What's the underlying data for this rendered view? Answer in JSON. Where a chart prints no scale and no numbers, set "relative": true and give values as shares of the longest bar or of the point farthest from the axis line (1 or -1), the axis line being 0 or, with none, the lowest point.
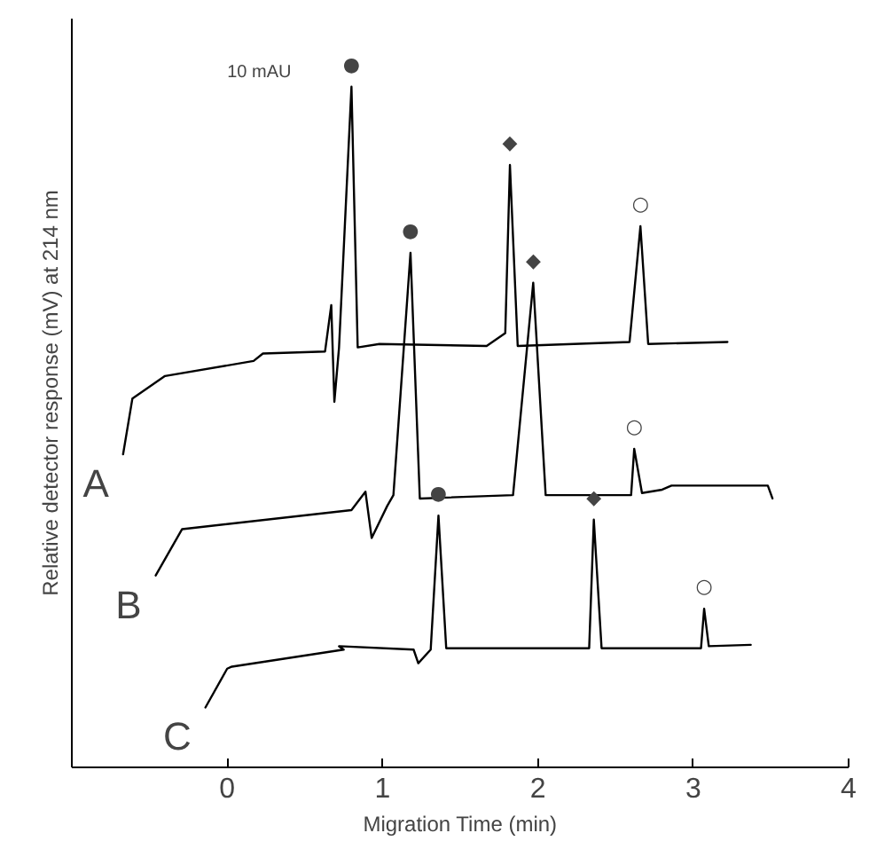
{
  "chart_data": {
    "type": "line",
    "relative": true,
    "xlabel": "Migration Time (min)",
    "ylabel": "Relative detector response (mV) at 214 nm",
    "xlim": [
      -1,
      4
    ],
    "xticks": [
      0,
      1,
      2,
      3,
      4
    ],
    "grid": false,
    "legend": false,
    "marker": "none",
    "line_style": "solid",
    "series": [
      {
        "name": "A",
        "color": "#000000",
        "x": [
          -0.67,
          -0.61,
          -0.4,
          0.17,
          0.23,
          0.63,
          0.67,
          0.69,
          0.72,
          0.8,
          0.84,
          0.98,
          1.67,
          1.79,
          1.82,
          1.87,
          2.59,
          2.66,
          2.71,
          3.22
        ],
        "values": [
          0.46,
          0.542,
          0.575,
          0.597,
          0.608,
          0.611,
          0.679,
          0.537,
          0.617,
          1.0,
          0.617,
          0.622,
          0.619,
          0.638,
          0.885,
          0.619,
          0.625,
          0.795,
          0.622,
          0.625
        ]
      },
      {
        "name": "B",
        "color": "#000000",
        "x": [
          -0.46,
          -0.29,
          0.8,
          0.89,
          0.93,
          1.03,
          1.07,
          1.18,
          1.24,
          1.84,
          1.97,
          2.05,
          2.6,
          2.62,
          2.67,
          2.8,
          2.86,
          3.48,
          3.51
        ],
        "values": [
          0.282,
          0.35,
          0.378,
          0.405,
          0.337,
          0.384,
          0.4,
          0.756,
          0.395,
          0.4,
          0.712,
          0.4,
          0.4,
          0.468,
          0.403,
          0.408,
          0.414,
          0.414,
          0.395
        ]
      },
      {
        "name": "C",
        "color": "#000000",
        "x": [
          -0.14,
          0,
          0.03,
          0.75,
          0.72,
          1.2,
          1.23,
          1.31,
          1.36,
          1.41,
          2.33,
          2.36,
          2.41,
          3.05,
          3.07,
          3.1,
          3.37
        ],
        "values": [
          0.088,
          0.145,
          0.148,
          0.173,
          0.178,
          0.173,
          0.153,
          0.173,
          0.37,
          0.175,
          0.175,
          0.364,
          0.175,
          0.175,
          0.233,
          0.178,
          0.18
        ]
      }
    ],
    "annotations": [
      "10 mAU",
      {
        "text": "●",
        "x": 0.8,
        "y": 1.0
      },
      {
        "text": "◆",
        "x": 1.82,
        "y": 0.885
      },
      {
        "text": "○",
        "x": 2.66,
        "y": 0.795
      },
      {
        "text": "●",
        "x": 1.18,
        "y": 0.756
      },
      {
        "text": "◆",
        "x": 1.97,
        "y": 0.712
      },
      {
        "text": "○",
        "x": 2.62,
        "y": 0.468
      },
      {
        "text": "●",
        "x": 1.36,
        "y": 0.37
      },
      {
        "text": "◆",
        "x": 2.36,
        "y": 0.364
      },
      {
        "text": "○",
        "x": 3.07,
        "y": 0.233
      }
    ]
  }
}
